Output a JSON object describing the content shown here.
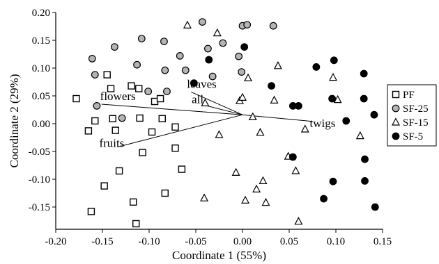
{
  "chart_data": {
    "type": "scatter",
    "title": "",
    "xlabel": "Coordinate 1 (55%)",
    "ylabel": "Coordinate 2 (29%)",
    "xlim": [
      -0.2,
      0.15
    ],
    "ylim": [
      -0.19,
      0.2
    ],
    "x_ticks": [
      "-0.20",
      "-0.15",
      "-0.10",
      "-0.05",
      "0.00",
      "0.05",
      "0.10",
      "0.15"
    ],
    "x_tick_values": [
      -0.2,
      -0.15,
      -0.1,
      -0.05,
      0.0,
      0.05,
      0.1,
      0.15
    ],
    "y_ticks": [
      "0.20",
      "0.15",
      "0.10",
      "0.05",
      "0.00",
      "-0.05",
      "-0.10",
      "-0.15"
    ],
    "y_tick_values": [
      0.2,
      0.15,
      0.1,
      0.05,
      0.0,
      -0.05,
      -0.1,
      -0.15
    ],
    "grid": false,
    "legend_position": "right",
    "series": [
      {
        "name": "PF",
        "marker": "square",
        "fill": "#ffffff",
        "stroke": "#000000",
        "points": [
          [
            -0.178,
            0.045
          ],
          [
            -0.165,
            -0.013
          ],
          [
            -0.162,
            -0.158
          ],
          [
            -0.158,
            0.005
          ],
          [
            -0.148,
            -0.112
          ],
          [
            -0.145,
            0.088
          ],
          [
            -0.141,
            0.063
          ],
          [
            -0.139,
            0.009
          ],
          [
            -0.136,
            -0.012
          ],
          [
            -0.132,
            -0.085
          ],
          [
            -0.119,
            0.068
          ],
          [
            -0.117,
            -0.141
          ],
          [
            -0.114,
            -0.18
          ],
          [
            -0.111,
            0.063
          ],
          [
            -0.11,
            0.01
          ],
          [
            -0.107,
            -0.052
          ],
          [
            -0.097,
            -0.015
          ],
          [
            -0.094,
            0.04
          ],
          [
            -0.088,
            0.045
          ],
          [
            -0.086,
            0.009
          ],
          [
            -0.083,
            -0.125
          ],
          [
            -0.072,
            -0.006
          ],
          [
            -0.072,
            -0.044
          ],
          [
            -0.065,
            -0.082
          ]
        ]
      },
      {
        "name": "SF-25",
        "marker": "circle",
        "fill": "#b4b4b4",
        "stroke": "#000000",
        "points": [
          [
            -0.161,
            0.117
          ],
          [
            -0.158,
            0.088
          ],
          [
            -0.156,
            0.032
          ],
          [
            -0.137,
            0.138
          ],
          [
            -0.129,
            0.01
          ],
          [
            -0.113,
            0.106
          ],
          [
            -0.108,
            0.153
          ],
          [
            -0.101,
            0.058
          ],
          [
            -0.084,
            0.148
          ],
          [
            -0.083,
            0.096
          ],
          [
            -0.081,
            0.058
          ],
          [
            -0.067,
            0.122
          ],
          [
            -0.061,
            0.096
          ],
          [
            -0.043,
            0.183
          ],
          [
            -0.037,
            0.135
          ],
          [
            -0.032,
            0.085
          ],
          [
            -0.021,
            0.145
          ],
          [
            -0.004,
            0.121
          ],
          [
            -0.001,
            0.093
          ],
          [
            0.0,
            0.176
          ],
          [
            0.005,
            0.178
          ],
          [
            0.033,
            0.176
          ]
        ]
      },
      {
        "name": "SF-15",
        "marker": "triangle",
        "fill": "#ffffff",
        "stroke": "#000000",
        "points": [
          [
            -0.059,
            0.177
          ],
          [
            -0.041,
            -0.134
          ],
          [
            -0.04,
            0.037
          ],
          [
            -0.027,
            0.163
          ],
          [
            -0.025,
            -0.02
          ],
          [
            -0.007,
            -0.088
          ],
          [
            -0.003,
            0.041
          ],
          [
            0.0,
            0.047
          ],
          [
            0.003,
            -0.138
          ],
          [
            0.006,
            0.082
          ],
          [
            0.011,
            0.012
          ],
          [
            0.015,
            -0.118
          ],
          [
            0.019,
            -0.016
          ],
          [
            0.022,
            -0.103
          ],
          [
            0.025,
            -0.142
          ],
          [
            0.034,
            0.042
          ],
          [
            0.038,
            0.104
          ],
          [
            0.049,
            -0.059
          ],
          [
            0.057,
            -0.085
          ],
          [
            0.06,
            -0.176
          ],
          [
            0.067,
            -0.01
          ],
          [
            0.097,
            0.083
          ],
          [
            0.102,
            0.043
          ],
          [
            0.126,
            -0.022
          ]
        ]
      },
      {
        "name": "SF-5",
        "marker": "circle",
        "fill": "#000000",
        "stroke": "#000000",
        "points": [
          [
            -0.052,
            0.073
          ],
          [
            -0.036,
            0.115
          ],
          [
            0.002,
            0.138
          ],
          [
            0.031,
            0.068
          ],
          [
            0.054,
            -0.06
          ],
          [
            0.054,
            0.032
          ],
          [
            0.06,
            0.032
          ],
          [
            0.079,
            0.102
          ],
          [
            0.087,
            -0.135
          ],
          [
            0.096,
            0.045
          ],
          [
            0.097,
            -0.104
          ],
          [
            0.098,
            0.114
          ],
          [
            0.111,
            0.005
          ],
          [
            0.13,
            0.09
          ],
          [
            0.13,
            0.045
          ],
          [
            0.131,
            -0.064
          ],
          [
            0.131,
            -0.103
          ],
          [
            0.141,
            0.016
          ],
          [
            0.142,
            -0.15
          ]
        ]
      }
    ],
    "vectors": [
      {
        "label": "flowers",
        "end": [
          -0.151,
          0.035
        ]
      },
      {
        "label": "leaves",
        "end": [
          -0.055,
          0.057
        ]
      },
      {
        "label": "all",
        "end": [
          -0.038,
          0.032
        ]
      },
      {
        "label": "fruits",
        "end": [
          -0.134,
          -0.042
        ]
      },
      {
        "label": "twigs",
        "end": [
          0.075,
          0.004
        ]
      }
    ],
    "vector_origin": [
      0.0,
      0.016
    ]
  }
}
